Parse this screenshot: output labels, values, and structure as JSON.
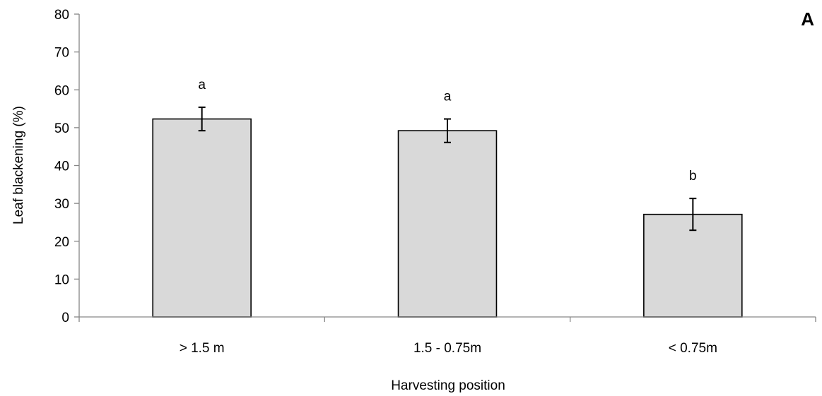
{
  "chart_data": {
    "type": "bar",
    "panel_label": "A",
    "title": "",
    "xlabel": "Harvesting position",
    "ylabel": "Leaf blackening (%)",
    "ylim": [
      0,
      80
    ],
    "yticks": [
      "0",
      "10",
      "20",
      "30",
      "40",
      "50",
      "60",
      "70",
      "80"
    ],
    "categories": [
      "> 1.5 m",
      "1.5 - 0.75m",
      "< 0.75m"
    ],
    "values": [
      52.3,
      49.2,
      27.1
    ],
    "errors": [
      3.1,
      3.1,
      4.2
    ],
    "significance_letters": [
      "a",
      "a",
      "b"
    ],
    "grid": false,
    "legend": "none",
    "bar_color": "#d9d9d9",
    "bar_edge_color": "#000000"
  }
}
